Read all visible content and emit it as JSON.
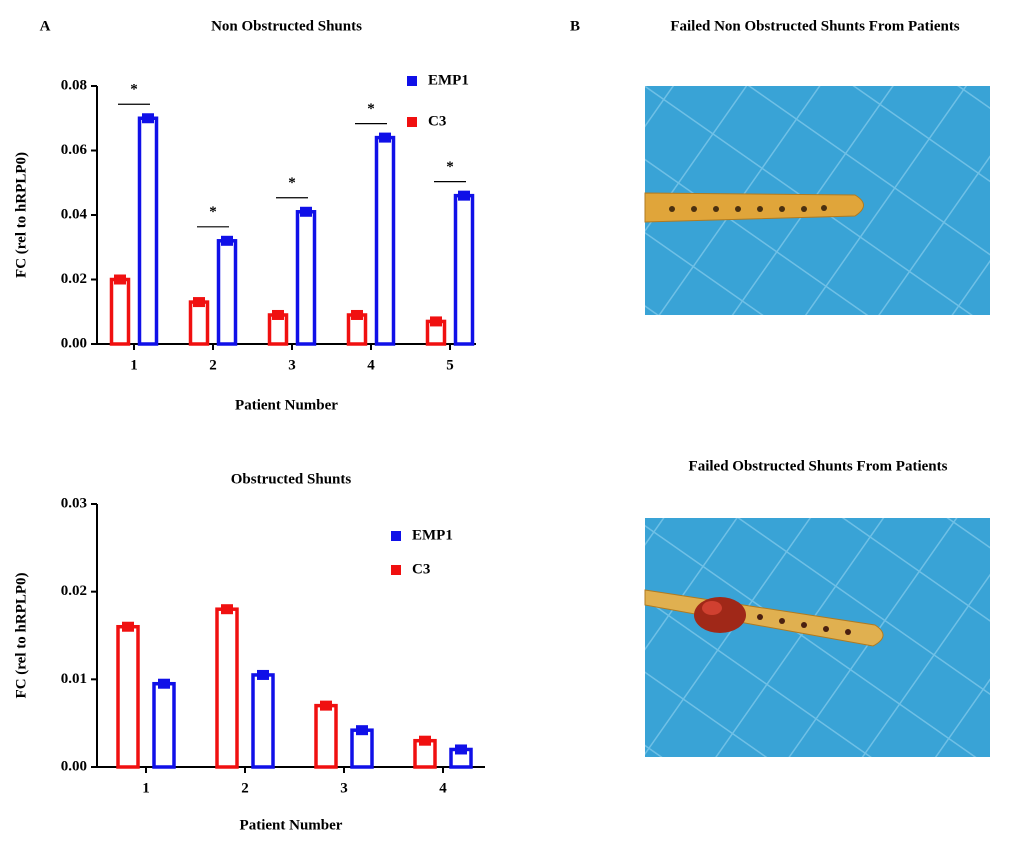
{
  "chart_data": [
    {
      "type": "bar",
      "title": "Non Obstructed Shunts",
      "ylabel": "FC (rel to hRPLP0)",
      "xlabel": "Patient Number",
      "categories": [
        "1",
        "2",
        "3",
        "4",
        "5"
      ],
      "series": [
        {
          "name": "EMP1",
          "color": "#1010e8",
          "values": [
            0.07,
            0.032,
            0.041,
            0.064,
            0.046
          ]
        },
        {
          "name": "C3",
          "color": "#f01010",
          "values": [
            0.02,
            0.013,
            0.009,
            0.009,
            0.007
          ]
        }
      ],
      "annotations": [
        "*",
        "*",
        "*",
        "*",
        "*"
      ],
      "ylim": [
        0,
        0.08
      ],
      "yticks": [
        {
          "value": 0,
          "label": "0.00"
        },
        {
          "value": 0.02,
          "label": "0.02"
        },
        {
          "value": 0.04,
          "label": "0.04"
        },
        {
          "value": 0.06,
          "label": "0.06"
        },
        {
          "value": 0.08,
          "label": "0.08"
        }
      ],
      "legend": "upper right"
    },
    {
      "type": "bar",
      "title": "Obstructed Shunts",
      "ylabel": "FC (rel to hRPLP0)",
      "xlabel": "Patient Number",
      "categories": [
        "1",
        "2",
        "3",
        "4"
      ],
      "series": [
        {
          "name": "EMP1",
          "color": "#1010e8",
          "values": [
            0.0095,
            0.0105,
            0.0042,
            0.002
          ]
        },
        {
          "name": "C3",
          "color": "#f01010",
          "values": [
            0.016,
            0.018,
            0.007,
            0.003
          ]
        }
      ],
      "ylim": [
        0,
        0.03
      ],
      "yticks": [
        {
          "value": 0,
          "label": "0.00"
        },
        {
          "value": 0.01,
          "label": "0.01"
        },
        {
          "value": 0.02,
          "label": "0.02"
        },
        {
          "value": 0.03,
          "label": "0.03"
        }
      ],
      "legend": "upper right"
    }
  ],
  "panel_labels": [
    "A",
    "B"
  ],
  "images": [
    {
      "title": "Failed Non Obstructed Shunts From Patients"
    },
    {
      "title": "Failed Obstructed Shunts From Patients"
    }
  ]
}
